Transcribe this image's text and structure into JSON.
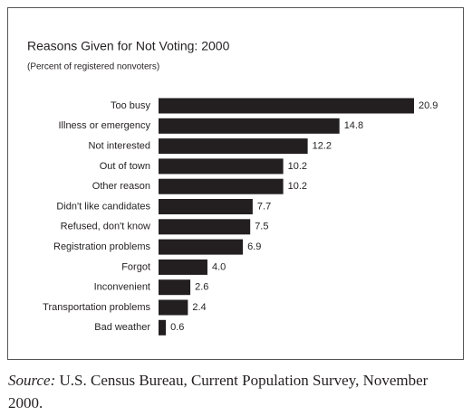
{
  "chart_data": {
    "type": "hbar",
    "title": "Reasons Given for Not Voting: 2000",
    "subtitle": "(Percent of registered nonvoters)",
    "categories": [
      "Too busy",
      "Illness or emergency",
      "Not interested",
      "Out of town",
      "Other reason",
      "Didn't like candidates",
      "Refused, don't know",
      "Registration problems",
      "Forgot",
      "Inconvenient",
      "Transportation problems",
      "Bad weather"
    ],
    "values": [
      20.9,
      14.8,
      12.2,
      10.2,
      10.2,
      7.7,
      7.5,
      6.9,
      4.0,
      2.6,
      2.4,
      0.6
    ],
    "value_labels": [
      "20.9",
      "14.8",
      "12.2",
      "10.2",
      "10.2",
      "7.7",
      "7.5",
      "6.9",
      "4.0",
      "2.6",
      "2.4",
      "0.6"
    ],
    "color": "#231f20"
  },
  "source_label": "Source:",
  "source": "U.S. Census Bureau, Current Population Survey, November 2000."
}
